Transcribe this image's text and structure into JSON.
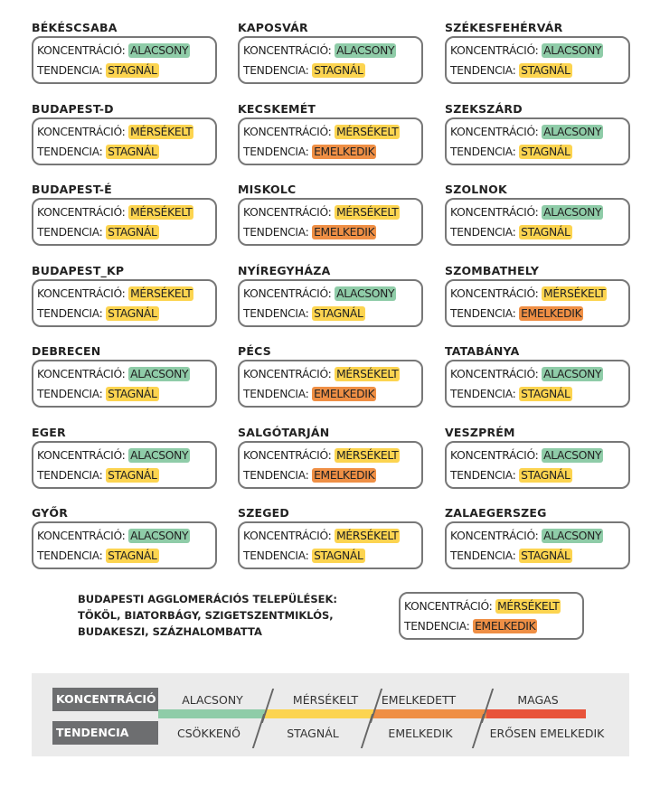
{
  "labels": {
    "concentration": "KONCENTRÁCIÓ:",
    "trend": "TENDENCIA:"
  },
  "colors": {
    "ALACSONY": "#8fcca8",
    "MÉRSÉKELT": "#fcd450",
    "STAGNÁL": "#fcd450",
    "EMELKEDIK": "#ef8f45"
  },
  "cities": [
    {
      "name": "BÉKÉSCSABA",
      "c": "ALACSONY",
      "t": "STAGNÁL"
    },
    {
      "name": "KAPOSVÁR",
      "c": "ALACSONY",
      "t": "STAGNÁL"
    },
    {
      "name": "SZÉKESFEHÉRVÁR",
      "c": "ALACSONY",
      "t": "STAGNÁL"
    },
    {
      "name": "BUDAPEST-D",
      "c": "MÉRSÉKELT",
      "t": "STAGNÁL"
    },
    {
      "name": "KECSKEMÉT",
      "c": "MÉRSÉKELT",
      "t": "EMELKEDIK"
    },
    {
      "name": "SZEKSZÁRD",
      "c": "ALACSONY",
      "t": "STAGNÁL"
    },
    {
      "name": "BUDAPEST-É",
      "c": "MÉRSÉKELT",
      "t": "STAGNÁL"
    },
    {
      "name": "MISKOLC",
      "c": "MÉRSÉKELT",
      "t": "EMELKEDIK"
    },
    {
      "name": "SZOLNOK",
      "c": "ALACSONY",
      "t": "STAGNÁL"
    },
    {
      "name": "BUDAPEST_KP",
      "c": "MÉRSÉKELT",
      "t": "STAGNÁL"
    },
    {
      "name": "NYÍREGYHÁZA",
      "c": "ALACSONY",
      "t": "STAGNÁL"
    },
    {
      "name": "SZOMBATHELY",
      "c": "MÉRSÉKELT",
      "t": "EMELKEDIK"
    },
    {
      "name": "DEBRECEN",
      "c": "ALACSONY",
      "t": "STAGNÁL"
    },
    {
      "name": "PÉCS",
      "c": "MÉRSÉKELT",
      "t": "EMELKEDIK"
    },
    {
      "name": "TATABÁNYA",
      "c": "ALACSONY",
      "t": "STAGNÁL"
    },
    {
      "name": "EGER",
      "c": "ALACSONY",
      "t": "STAGNÁL"
    },
    {
      "name": "SALGÓTARJÁN",
      "c": "MÉRSÉKELT",
      "t": "EMELKEDIK"
    },
    {
      "name": "VESZPRÉM",
      "c": "ALACSONY",
      "t": "STAGNÁL"
    },
    {
      "name": "GYŐR",
      "c": "ALACSONY",
      "t": "STAGNÁL"
    },
    {
      "name": "SZEGED",
      "c": "MÉRSÉKELT",
      "t": "STAGNÁL"
    },
    {
      "name": "ZALAEGERSZEG",
      "c": "ALACSONY",
      "t": "STAGNÁL"
    }
  ],
  "agglomeration": {
    "lines": [
      "BUDAPESTI AGGLOMERÁCIÓS TELEPÜLÉSEK:",
      "TÖKÖL, BIATORBÁGY, SZIGETSZENTMIKLÓS,",
      "BUDAKESZI, SZÁZHALOMBATTA"
    ],
    "c": "MÉRSÉKELT",
    "t": "EMELKEDIK"
  },
  "legend": {
    "concentration_label": "KONCENTRÁCIÓ",
    "trend_label": "TENDENCIA",
    "levels": [
      "ALACSONY",
      "MÉRSÉKELT",
      "EMELKEDETT",
      "MAGAS"
    ],
    "trends": [
      "CSÖKKENŐ",
      "STAGNÁL",
      "EMELKEDIK",
      "ERŐSEN EMELKEDIK"
    ],
    "bar_colors": [
      "#8fcca8",
      "#fcd450",
      "#ef8f45",
      "#e8533a"
    ]
  }
}
